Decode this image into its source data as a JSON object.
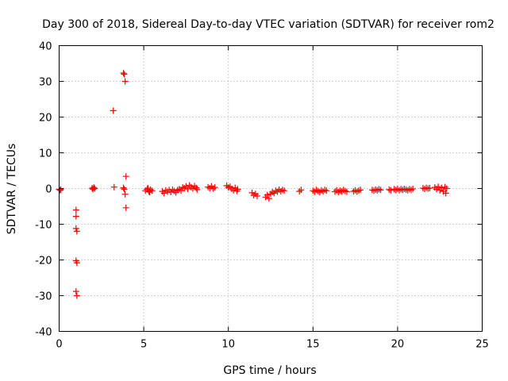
{
  "chart_data": {
    "type": "scatter",
    "title": "Day 300 of 2018, Sidereal Day-to-day VTEC variation (SDTVAR) for receiver rom2",
    "xlabel": "GPS time / hours",
    "ylabel": "SDTVAR / TECUs",
    "xlim": [
      0,
      25
    ],
    "ylim": [
      -40,
      40
    ],
    "xticks": [
      0,
      5,
      10,
      15,
      20,
      25
    ],
    "yticks": [
      -40,
      -30,
      -20,
      -10,
      0,
      10,
      20,
      30,
      40
    ],
    "xtick_labels": [
      "0",
      "5",
      "10",
      "15",
      "20",
      "25"
    ],
    "ytick_labels": [
      "-40",
      "-30",
      "-20",
      "-10",
      "0",
      "10",
      "20",
      "30",
      "40"
    ],
    "grid": true,
    "marker": "+",
    "color": "#ff0000",
    "series": [
      {
        "name": "SDTVAR",
        "points": [
          [
            0.0,
            -0.2
          ],
          [
            0.05,
            -0.5
          ],
          [
            0.1,
            -0.3
          ],
          [
            1.0,
            -6.0
          ],
          [
            1.0,
            -7.8
          ],
          [
            1.0,
            -11.2
          ],
          [
            1.05,
            -12.0
          ],
          [
            1.0,
            -20.2
          ],
          [
            1.05,
            -20.8
          ],
          [
            1.0,
            -28.8
          ],
          [
            1.05,
            -30.0
          ],
          [
            1.95,
            0.1
          ],
          [
            2.0,
            -0.2
          ],
          [
            2.05,
            0.3
          ],
          [
            2.1,
            0.0
          ],
          [
            3.2,
            21.8
          ],
          [
            3.25,
            0.4
          ],
          [
            3.8,
            32.3
          ],
          [
            3.85,
            32.0
          ],
          [
            3.9,
            30.0
          ],
          [
            3.8,
            0.2
          ],
          [
            3.85,
            -0.2
          ],
          [
            3.95,
            3.4
          ],
          [
            3.9,
            -1.6
          ],
          [
            3.95,
            -5.4
          ],
          [
            5.1,
            -0.6
          ],
          [
            5.2,
            -0.2
          ],
          [
            5.3,
            -0.8
          ],
          [
            5.4,
            -0.3
          ],
          [
            5.5,
            -0.6
          ],
          [
            5.25,
            0.1
          ],
          [
            5.35,
            -1.0
          ],
          [
            6.1,
            -0.8
          ],
          [
            6.2,
            -1.3
          ],
          [
            6.3,
            -0.5
          ],
          [
            6.4,
            -0.9
          ],
          [
            6.5,
            -0.4
          ],
          [
            6.6,
            -1.0
          ],
          [
            6.7,
            -0.3
          ],
          [
            6.8,
            -0.7
          ],
          [
            6.9,
            -1.1
          ],
          [
            7.0,
            -0.4
          ],
          [
            7.1,
            -0.2
          ],
          [
            7.2,
            -0.6
          ],
          [
            7.3,
            0.3
          ],
          [
            7.4,
            0.1
          ],
          [
            7.5,
            0.6
          ],
          [
            7.6,
            -0.1
          ],
          [
            7.7,
            0.9
          ],
          [
            7.8,
            0.4
          ],
          [
            7.9,
            0.0
          ],
          [
            8.0,
            0.7
          ],
          [
            8.1,
            0.2
          ],
          [
            8.15,
            -0.3
          ],
          [
            8.8,
            0.4
          ],
          [
            8.9,
            0.1
          ],
          [
            9.0,
            0.6
          ],
          [
            9.1,
            0.0
          ],
          [
            9.2,
            0.3
          ],
          [
            9.9,
            0.8
          ],
          [
            10.0,
            0.3
          ],
          [
            10.1,
            0.5
          ],
          [
            10.2,
            -0.1
          ],
          [
            10.3,
            -0.5
          ],
          [
            10.4,
            0.2
          ],
          [
            10.5,
            -0.7
          ],
          [
            10.55,
            -0.2
          ],
          [
            11.4,
            -1.2
          ],
          [
            11.5,
            -1.9
          ],
          [
            11.6,
            -1.5
          ],
          [
            11.7,
            -2.1
          ],
          [
            12.2,
            -2.4
          ],
          [
            12.3,
            -1.8
          ],
          [
            12.4,
            -2.8
          ],
          [
            12.5,
            -1.5
          ],
          [
            12.6,
            -1.0
          ],
          [
            12.7,
            -1.3
          ],
          [
            12.8,
            -0.6
          ],
          [
            12.9,
            -0.9
          ],
          [
            13.0,
            -0.3
          ],
          [
            13.1,
            -0.8
          ],
          [
            13.2,
            -0.4
          ],
          [
            13.3,
            -0.6
          ],
          [
            14.2,
            -0.8
          ],
          [
            14.3,
            -0.4
          ],
          [
            15.0,
            -0.6
          ],
          [
            15.1,
            -0.9
          ],
          [
            15.2,
            -0.4
          ],
          [
            15.3,
            -0.7
          ],
          [
            15.4,
            -1.0
          ],
          [
            15.5,
            -0.5
          ],
          [
            15.6,
            -0.8
          ],
          [
            15.7,
            -0.4
          ],
          [
            15.8,
            -0.6
          ],
          [
            16.3,
            -0.9
          ],
          [
            16.4,
            -0.5
          ],
          [
            16.5,
            -1.0
          ],
          [
            16.6,
            -0.6
          ],
          [
            16.7,
            -0.8
          ],
          [
            16.8,
            -0.4
          ],
          [
            16.9,
            -0.7
          ],
          [
            17.0,
            -0.9
          ],
          [
            17.4,
            -0.8
          ],
          [
            17.5,
            -0.5
          ],
          [
            17.6,
            -0.9
          ],
          [
            17.7,
            -0.6
          ],
          [
            17.8,
            -0.4
          ],
          [
            18.5,
            -0.4
          ],
          [
            18.6,
            -0.6
          ],
          [
            18.7,
            -0.3
          ],
          [
            18.8,
            -0.5
          ],
          [
            18.9,
            -0.2
          ],
          [
            19.0,
            -0.4
          ],
          [
            19.5,
            -0.3
          ],
          [
            19.6,
            -0.5
          ],
          [
            19.8,
            -0.2
          ],
          [
            19.9,
            -0.4
          ],
          [
            20.0,
            -0.1
          ],
          [
            20.1,
            -0.5
          ],
          [
            20.2,
            -0.2
          ],
          [
            20.3,
            -0.4
          ],
          [
            20.4,
            -0.1
          ],
          [
            20.5,
            -0.3
          ],
          [
            20.6,
            -0.5
          ],
          [
            20.7,
            -0.2
          ],
          [
            20.8,
            -0.4
          ],
          [
            20.9,
            -0.1
          ],
          [
            21.5,
            0.1
          ],
          [
            21.6,
            -0.1
          ],
          [
            21.7,
            0.2
          ],
          [
            21.8,
            0.0
          ],
          [
            21.9,
            0.1
          ],
          [
            22.2,
            0.3
          ],
          [
            22.3,
            -0.2
          ],
          [
            22.4,
            0.5
          ],
          [
            22.5,
            -0.5
          ],
          [
            22.6,
            0.2
          ],
          [
            22.7,
            -0.8
          ],
          [
            22.8,
            0.4
          ],
          [
            22.85,
            -1.3
          ],
          [
            22.9,
            0.0
          ]
        ]
      }
    ]
  }
}
